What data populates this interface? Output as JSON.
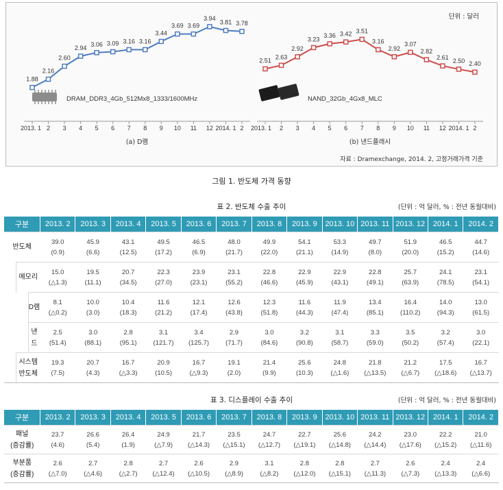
{
  "figure": {
    "unit_note": "단위 : 달러",
    "caption": "그림 1. 반도체 가격 동향",
    "source": "자료 : Dramexchange, 2014. 2, 고정거래가격 기준",
    "colors": {
      "dram": "#4d7cc0",
      "nand": "#cf4b4b",
      "axis": "#999999"
    }
  },
  "chart_data": [
    {
      "type": "line",
      "title": "(a) D램",
      "series": [
        {
          "name": "DRAM_DDR3_4Gb_512Mx8_1333/1600MHz",
          "values": [
            1.88,
            2.16,
            2.6,
            2.94,
            3.06,
            3.09,
            3.16,
            3.16,
            3.44,
            3.69,
            3.69,
            3.94,
            3.81,
            3.78
          ]
        }
      ],
      "categories": [
        "2013. 1",
        "2",
        "3",
        "4",
        "5",
        "6",
        "7",
        "8",
        "9",
        "10",
        "11",
        "12",
        "2014. 1",
        "2"
      ],
      "value_labels": [
        "1.88",
        "2.16",
        "2.60",
        "2.94",
        "3.06",
        "3.09",
        "3.16",
        "3.16",
        "3.44",
        "3.69",
        "3.69",
        "3.94",
        "3.81",
        "3.78"
      ],
      "ylim": [
        1.5,
        4.1
      ],
      "legend_text": "DRAM_DDR3_4Gb_512Mx8_1333/1600MHz"
    },
    {
      "type": "line",
      "title": "(b) 낸드플래시",
      "series": [
        {
          "name": "NAND_32Gb_4Gx8_MLC",
          "values": [
            2.51,
            2.63,
            2.92,
            3.23,
            3.36,
            3.42,
            3.51,
            3.16,
            2.92,
            3.07,
            2.82,
            2.61,
            2.5,
            2.4
          ]
        }
      ],
      "categories": [
        "2013. 1",
        "2",
        "3",
        "4",
        "5",
        "6",
        "7",
        "8",
        "9",
        "10",
        "11",
        "12",
        "2014. 1",
        "2"
      ],
      "value_labels": [
        "2.51",
        "2.63",
        "2.92",
        "3.23",
        "3.36",
        "3.42",
        "3.51",
        "3.16",
        "2.92",
        "3.07",
        "2.82",
        "2.61",
        "2.50",
        "2.40"
      ],
      "ylim": [
        1.5,
        4.1
      ],
      "legend_text": "NAND_32Gb_4Gx8_MLC"
    }
  ],
  "table2": {
    "title": "표 2. 반도체 수출 추이",
    "unit": "(단위 : 억 달러, % : 전년 동월대비)",
    "header_first": "구분",
    "columns": [
      "2013. 2",
      "2013. 3",
      "2013. 4",
      "2013. 5",
      "2013. 6",
      "2013. 7",
      "2013. 8",
      "2013. 9",
      "2013. 10",
      "2013. 11",
      "2013. 12",
      "2014. 1",
      "2014. 2"
    ],
    "rows": [
      {
        "label": "반도체",
        "level": 0,
        "values": [
          "39.0",
          "45.9",
          "43.1",
          "49.5",
          "46.5",
          "48.0",
          "49.9",
          "54.1",
          "53.3",
          "49.7",
          "51.9",
          "46.5",
          "44.7"
        ],
        "changes": [
          "(0.9)",
          "(6.6)",
          "(12.5)",
          "(17.2)",
          "(6.9)",
          "(21.7)",
          "(22.0)",
          "(21.1)",
          "(14.9)",
          "(8.0)",
          "(20.0)",
          "(15.2)",
          "(14.6)"
        ]
      },
      {
        "label": "메모리",
        "level": 1,
        "values": [
          "15.0",
          "19.5",
          "20.7",
          "22.3",
          "23.9",
          "23.1",
          "22.8",
          "22.9",
          "22.9",
          "22.8",
          "25.7",
          "24.1",
          "23.1"
        ],
        "changes": [
          "(△1.3)",
          "(11.1)",
          "(34.5)",
          "(27.0)",
          "(23.1)",
          "(55.2)",
          "(46.6)",
          "(45.9)",
          "(43.1)",
          "(49.1)",
          "(63.9)",
          "(78.5)",
          "(54.1)"
        ]
      },
      {
        "label": "D램",
        "level": 2,
        "values": [
          "8.1",
          "10.0",
          "10.4",
          "11.6",
          "12.1",
          "12.6",
          "12.3",
          "11.6",
          "11.9",
          "13.4",
          "16.4",
          "14.0",
          "13.0"
        ],
        "changes": [
          "(△0.2)",
          "(3.0)",
          "(18.3)",
          "(21.2)",
          "(17.4)",
          "(43.8)",
          "(51.8)",
          "(44.3)",
          "(47.4)",
          "(85.1)",
          "(110.2)",
          "(94.3)",
          "(61.5)"
        ]
      },
      {
        "label": "낸드",
        "level": 2,
        "values": [
          "2.5",
          "3.0",
          "2.8",
          "3.1",
          "3.4",
          "2.9",
          "3.0",
          "3.2",
          "3.1",
          "3.3",
          "3.5",
          "3.2",
          "3.0"
        ],
        "changes": [
          "(51.4)",
          "(88.1)",
          "(95.1)",
          "(121.7)",
          "(125.7)",
          "(71.7)",
          "(84.6)",
          "(90.8)",
          "(58.7)",
          "(59.0)",
          "(50.2)",
          "(57.4)",
          "(22.1)"
        ]
      },
      {
        "label": "시스템\n반도체",
        "level": 1,
        "values": [
          "19.3",
          "20.7",
          "16.7",
          "20.9",
          "16.7",
          "19.1",
          "21.4",
          "25.6",
          "24.8",
          "21.8",
          "21.2",
          "17.5",
          "16.7"
        ],
        "changes": [
          "(7.5)",
          "(4.3)",
          "(△3.3)",
          "(10.5)",
          "(△9.3)",
          "(2.0)",
          "(9.9)",
          "(10.3)",
          "(△1.6)",
          "(△13.5)",
          "(△6.7)",
          "(△18.6)",
          "(△13.7)"
        ]
      }
    ]
  },
  "table3": {
    "title": "표 3. 디스플레이 수출 추이",
    "unit": "(단위 : 억 달러, % : 전년 동월대비)",
    "header_first": "구분",
    "columns": [
      "2013. 2",
      "2013. 3",
      "2013. 4",
      "2013. 5",
      "2013. 6",
      "2013. 7",
      "2013. 8",
      "2013. 9",
      "2013. 10",
      "2013. 11",
      "2013. 12",
      "2014. 1",
      "2014. 2"
    ],
    "rows": [
      {
        "label": "패널\n(증감률)",
        "level": 0,
        "values": [
          "23.7",
          "26.6",
          "26.4",
          "24.9",
          "21.7",
          "23.5",
          "24.7",
          "22.7",
          "25.6",
          "24.2",
          "23.0",
          "22.2",
          "21.0"
        ],
        "changes": [
          "(4.6)",
          "(5.4)",
          "(1.9)",
          "(△7.9)",
          "(△14.3)",
          "(△15.1)",
          "(△12.7)",
          "(△19.1)",
          "(△14.8)",
          "(△14.4)",
          "(△17.6)",
          "(△15.2)",
          "(△11.6)"
        ]
      },
      {
        "label": "부분품\n(증감률)",
        "level": 0,
        "values": [
          "2.6",
          "2.7",
          "2.8",
          "2.7",
          "2.6",
          "2.9",
          "3.1",
          "2.8",
          "2.8",
          "2.7",
          "2.6",
          "2.4",
          "2.4"
        ],
        "changes": [
          "(△7.0)",
          "(△4.6)",
          "(△2.7)",
          "(△12.4)",
          "(△10.5)",
          "(△8.9)",
          "(△8.2)",
          "(△12.0)",
          "(△15.1)",
          "(△11.3)",
          "(△7.3)",
          "(△13.3)",
          "(△6.6)"
        ]
      }
    ]
  }
}
